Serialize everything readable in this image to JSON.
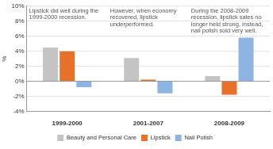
{
  "chart_data": {
    "type": "bar",
    "categories": [
      "1999-2000",
      "2001-2007",
      "2008-2009"
    ],
    "series": [
      {
        "name": "Beauty and Personal Care",
        "color": "#c4c4c4",
        "values": [
          4.5,
          3.1,
          0.7
        ]
      },
      {
        "name": "Lipstick",
        "color": "#e8712a",
        "values": [
          4.0,
          0.2,
          -1.8
        ]
      },
      {
        "name": "Nail Polish",
        "color": "#8db4e2",
        "values": [
          -0.8,
          -1.6,
          5.8
        ]
      }
    ],
    "y_label": "%",
    "ylim": [
      -4,
      10
    ],
    "yticks": [
      {
        "value": -4,
        "label": "-4%"
      },
      {
        "value": -2,
        "label": "-2%"
      },
      {
        "value": 0,
        "label": "0%"
      },
      {
        "value": 2,
        "label": "2%"
      },
      {
        "value": 4,
        "label": "4%"
      },
      {
        "value": 6,
        "label": "6%"
      },
      {
        "value": 8,
        "label": "8%"
      },
      {
        "value": 10,
        "label": "10%"
      }
    ],
    "annotations": [
      "Lipstick did well during the 1999-2000 recession.",
      "However, when economy recovered, lipstick underperformed.",
      "During the 2008-2009 recession, lipstick sales no longer held strong, instead, nail polish sold very well."
    ],
    "grid": true,
    "legend": "bottom"
  }
}
